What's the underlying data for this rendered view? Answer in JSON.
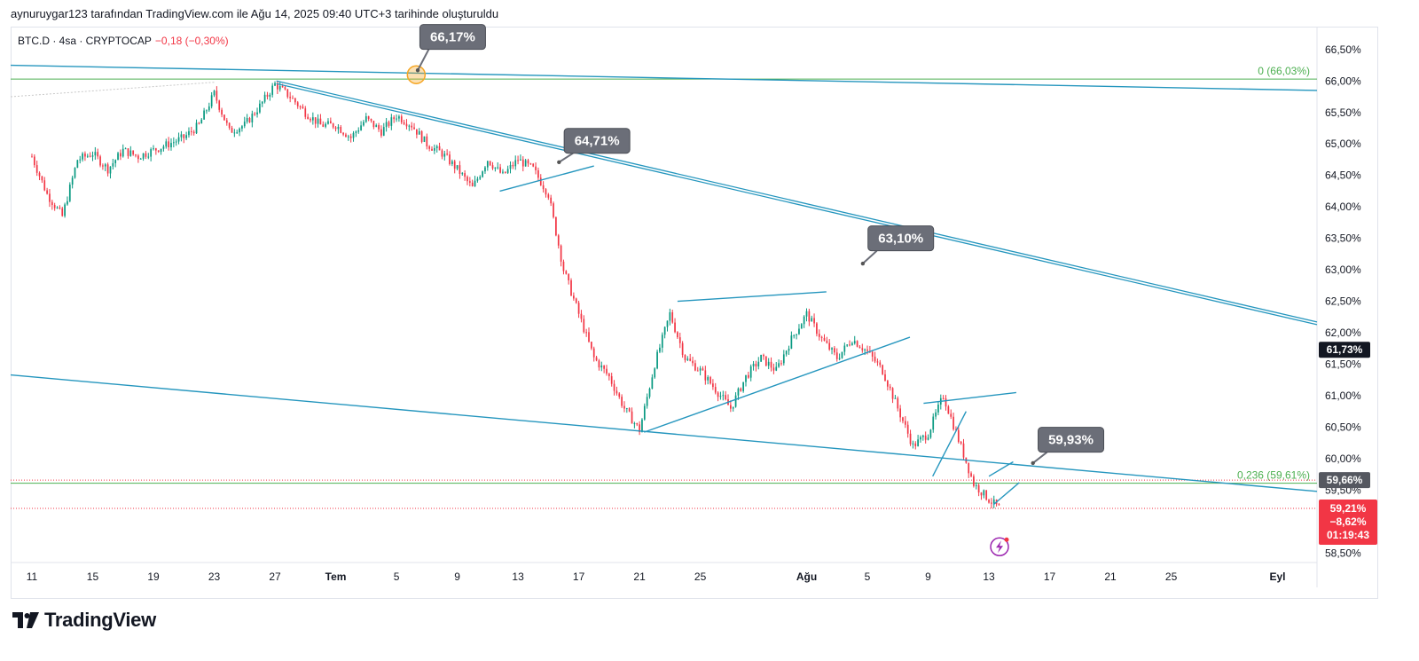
{
  "caption": "aynuruygar123 tarafından TradingView.com ile Ağu 14, 2025 09:40 UTC+3 tarihinde oluşturuldu",
  "legend": {
    "symbol": "BTC.D · 4sa · CRYPTOCAP",
    "change": "−0,18 (−0,30%)"
  },
  "brand": {
    "name": "TradingView",
    "icon": "tradingview-logo-icon"
  },
  "colors": {
    "up": "#089981",
    "down": "#f23645",
    "trend": "#2596be",
    "fib": "#4caf50",
    "callout": "#6b6e78",
    "marker": "#f5a623"
  },
  "chart_data": {
    "type": "candlestick",
    "title": "",
    "ylim": [
      58.35,
      66.85
    ],
    "y_ticks": [
      {
        "value": 66.5,
        "label": "66,50%"
      },
      {
        "value": 66.0,
        "label": "66,00%"
      },
      {
        "value": 65.5,
        "label": "65,50%"
      },
      {
        "value": 65.0,
        "label": "65,00%"
      },
      {
        "value": 64.5,
        "label": "64,50%"
      },
      {
        "value": 64.0,
        "label": "64,00%"
      },
      {
        "value": 63.5,
        "label": "63,50%"
      },
      {
        "value": 63.0,
        "label": "63,00%"
      },
      {
        "value": 62.5,
        "label": "62,50%"
      },
      {
        "value": 62.0,
        "label": "62,00%"
      },
      {
        "value": 61.5,
        "label": "61,50%"
      },
      {
        "value": 61.0,
        "label": "61,00%"
      },
      {
        "value": 60.5,
        "label": "60,50%"
      },
      {
        "value": 60.0,
        "label": "60,00%"
      },
      {
        "value": 59.5,
        "label": "59,50%"
      },
      {
        "value": 58.5,
        "label": "58,50%"
      }
    ],
    "x_ticks": [
      {
        "day": 0,
        "label": "11"
      },
      {
        "day": 4,
        "label": "15"
      },
      {
        "day": 8,
        "label": "19"
      },
      {
        "day": 12,
        "label": "23"
      },
      {
        "day": 16,
        "label": "27"
      },
      {
        "day": 20,
        "label": "Tem"
      },
      {
        "day": 24,
        "label": "5"
      },
      {
        "day": 28,
        "label": "9"
      },
      {
        "day": 32,
        "label": "13"
      },
      {
        "day": 36,
        "label": "17"
      },
      {
        "day": 40,
        "label": "21"
      },
      {
        "day": 44,
        "label": "25"
      },
      {
        "day": 51,
        "label": "Ağu"
      },
      {
        "day": 55,
        "label": "5"
      },
      {
        "day": 59,
        "label": "9"
      },
      {
        "day": 63,
        "label": "13"
      },
      {
        "day": 67,
        "label": "17"
      },
      {
        "day": 71,
        "label": "21"
      },
      {
        "day": 75,
        "label": "25"
      },
      {
        "day": 82,
        "label": "Eyl"
      }
    ],
    "x_range_days": [
      -1.4,
      84.6
    ],
    "candles_per_day": 6,
    "path_anchors": [
      [
        0,
        64.8
      ],
      [
        1,
        64.2
      ],
      [
        2,
        63.85
      ],
      [
        3,
        64.75
      ],
      [
        4,
        64.85
      ],
      [
        5,
        64.6
      ],
      [
        6,
        64.9
      ],
      [
        7,
        64.8
      ],
      [
        8,
        64.9
      ],
      [
        9,
        65.0
      ],
      [
        10,
        65.1
      ],
      [
        11,
        65.3
      ],
      [
        12,
        65.8
      ],
      [
        13,
        65.2
      ],
      [
        14,
        65.3
      ],
      [
        15,
        65.6
      ],
      [
        16,
        65.95
      ],
      [
        17,
        65.75
      ],
      [
        18,
        65.5
      ],
      [
        19,
        65.3
      ],
      [
        20,
        65.3
      ],
      [
        21,
        65.1
      ],
      [
        22,
        65.4
      ],
      [
        23,
        65.2
      ],
      [
        24,
        65.45
      ],
      [
        25,
        65.3
      ],
      [
        26,
        65.0
      ],
      [
        27,
        64.85
      ],
      [
        28,
        64.6
      ],
      [
        29,
        64.3
      ],
      [
        30,
        64.75
      ],
      [
        31,
        64.5
      ],
      [
        32,
        64.75
      ],
      [
        33,
        64.6
      ],
      [
        34,
        64.2
      ],
      [
        35,
        63.0
      ],
      [
        36,
        62.3
      ],
      [
        37,
        61.6
      ],
      [
        38,
        61.3
      ],
      [
        39,
        60.8
      ],
      [
        40,
        60.45
      ],
      [
        41,
        61.5
      ],
      [
        42,
        62.3
      ],
      [
        43,
        61.6
      ],
      [
        44,
        61.4
      ],
      [
        45,
        61.1
      ],
      [
        46,
        60.8
      ],
      [
        47,
        61.3
      ],
      [
        48,
        61.6
      ],
      [
        49,
        61.4
      ],
      [
        50,
        61.9
      ],
      [
        51,
        62.3
      ],
      [
        52,
        61.9
      ],
      [
        53,
        61.6
      ],
      [
        54,
        61.9
      ],
      [
        55,
        61.7
      ],
      [
        56,
        61.4
      ],
      [
        57,
        60.8
      ],
      [
        58,
        60.2
      ],
      [
        59,
        60.4
      ],
      [
        60,
        61.0
      ],
      [
        61,
        60.3
      ],
      [
        62,
        59.6
      ],
      [
        63,
        59.35
      ],
      [
        63.7,
        59.21
      ]
    ],
    "horizontal_lines": [
      {
        "label": "0 (66,03%)",
        "value": 66.03,
        "color": "#4caf50"
      },
      {
        "label": "0,236 (59,61%)",
        "value": 59.61,
        "color": "#4caf50"
      }
    ],
    "trend_lines": [
      {
        "name": "upper-long-trendline",
        "points": [
          [
            -1.4,
            66.25
          ],
          [
            84.6,
            65.85
          ]
        ]
      },
      {
        "name": "descending-channel-top",
        "points": [
          [
            16.1,
            65.98
          ],
          [
            84.6,
            62.15
          ]
        ],
        "double": true
      },
      {
        "name": "lower-long-trendline",
        "points": [
          [
            -1.4,
            61.33
          ],
          [
            84.6,
            59.48
          ]
        ]
      },
      {
        "name": "flag-1-top",
        "points": [
          [
            30.8,
            64.25
          ],
          [
            37,
            64.65
          ]
        ]
      },
      {
        "name": "rising-wedge-top",
        "points": [
          [
            42.5,
            62.5
          ],
          [
            52.3,
            62.65
          ]
        ]
      },
      {
        "name": "rising-wedge-bottom",
        "points": [
          [
            40.3,
            60.42
          ],
          [
            57.8,
            61.93
          ]
        ]
      },
      {
        "name": "flag-2-top",
        "points": [
          [
            58.7,
            60.88
          ],
          [
            64.8,
            61.05
          ]
        ]
      },
      {
        "name": "flag-2-bottom",
        "points": [
          [
            59.3,
            59.72
          ],
          [
            61.5,
            60.75
          ]
        ]
      },
      {
        "name": "flag-3-top",
        "points": [
          [
            63.0,
            59.72
          ],
          [
            64.6,
            59.95
          ]
        ]
      },
      {
        "name": "flag-3-bottom",
        "points": [
          [
            63.3,
            59.27
          ],
          [
            65.0,
            59.62
          ]
        ]
      }
    ],
    "callouts": [
      {
        "label": "66,17%",
        "anchor": [
          25.4,
          66.17
        ],
        "box": [
          27.7,
          66.7
        ]
      },
      {
        "label": "64,71%",
        "anchor": [
          34.7,
          64.71
        ],
        "box": [
          37.2,
          65.05
        ]
      },
      {
        "label": "63,10%",
        "anchor": [
          54.7,
          63.1
        ],
        "box": [
          57.2,
          63.5
        ]
      },
      {
        "label": "59,93%",
        "anchor": [
          65.9,
          59.93
        ],
        "box": [
          68.4,
          60.3
        ]
      }
    ],
    "marker_circle": {
      "day": 25.3,
      "value": 66.1
    },
    "price_tags": [
      {
        "label": "61,73%",
        "value": 61.73,
        "color": "#131722"
      },
      {
        "label": "59,66%",
        "value": 59.66,
        "color": "#555860"
      }
    ],
    "last_price": {
      "price": "59,21%",
      "change": "−8,62%",
      "countdown": "01:19:43",
      "value": 59.21
    },
    "dotted_lines": [
      {
        "value": 59.66,
        "color": "#f23645"
      },
      {
        "value": 59.21,
        "color": "#f23645"
      }
    ]
  }
}
